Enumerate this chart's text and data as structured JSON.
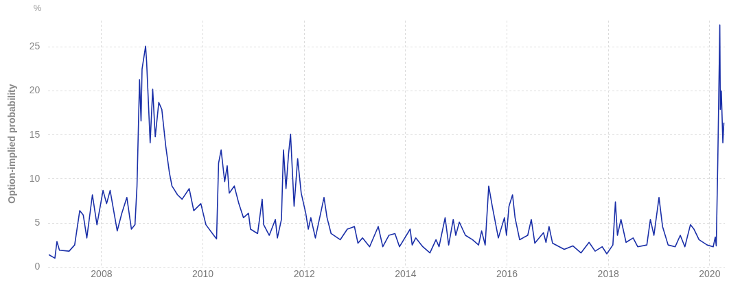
{
  "chart_data": {
    "type": "line",
    "ylabel": "Option-implied probability",
    "annotations": [
      "%"
    ],
    "xlim": [
      2006.95,
      2020.3
    ],
    "xticks": [
      2008,
      2010,
      2012,
      2014,
      2016,
      2018,
      2020
    ],
    "ylim": [
      0,
      28
    ],
    "yticks": [
      0,
      5,
      10,
      15,
      20,
      25
    ],
    "grid": true,
    "legend": false,
    "marker": "none",
    "line_style": "solid",
    "series": [
      {
        "color": "#1a2fa8",
        "x": [
          2006.96,
          2007.08,
          2007.12,
          2007.17,
          2007.36,
          2007.47,
          2007.57,
          2007.64,
          2007.71,
          2007.82,
          2007.91,
          2008.03,
          2008.1,
          2008.17,
          2008.31,
          2008.4,
          2008.5,
          2008.59,
          2008.66,
          2008.7,
          2008.75,
          2008.78,
          2008.8,
          2008.87,
          2008.89,
          2008.96,
          2009.01,
          2009.06,
          2009.13,
          2009.19,
          2009.27,
          2009.34,
          2009.39,
          2009.5,
          2009.59,
          2009.73,
          2009.82,
          2009.96,
          2010.06,
          2010.24,
          2010.27,
          2010.31,
          2010.36,
          2010.43,
          2010.48,
          2010.52,
          2010.62,
          2010.71,
          2010.8,
          2010.9,
          2010.94,
          2011.08,
          2011.17,
          2011.2,
          2011.31,
          2011.43,
          2011.47,
          2011.55,
          2011.59,
          2011.64,
          2011.69,
          2011.73,
          2011.8,
          2011.87,
          2011.94,
          2012.03,
          2012.08,
          2012.13,
          2012.22,
          2012.39,
          2012.45,
          2012.53,
          2012.71,
          2012.85,
          2012.99,
          2013.06,
          2013.15,
          2013.29,
          2013.46,
          2013.55,
          2013.67,
          2013.79,
          2013.88,
          2014.09,
          2014.13,
          2014.2,
          2014.34,
          2014.48,
          2014.6,
          2014.66,
          2014.78,
          2014.85,
          2014.94,
          2014.99,
          2015.06,
          2015.18,
          2015.32,
          2015.44,
          2015.5,
          2015.57,
          2015.64,
          2015.71,
          2015.83,
          2015.95,
          2015.99,
          2016.04,
          2016.11,
          2016.16,
          2016.25,
          2016.41,
          2016.48,
          2016.55,
          2016.72,
          2016.77,
          2016.83,
          2016.9,
          2017.13,
          2017.3,
          2017.46,
          2017.62,
          2017.74,
          2017.88,
          2017.97,
          2018.09,
          2018.14,
          2018.18,
          2018.25,
          2018.35,
          2018.49,
          2018.58,
          2018.76,
          2018.83,
          2018.9,
          2019.0,
          2019.07,
          2019.18,
          2019.32,
          2019.42,
          2019.51,
          2019.62,
          2019.69,
          2019.79,
          2019.95,
          2020.07,
          2020.11,
          2020.13,
          2020.16,
          2020.2,
          2020.21,
          2020.23,
          2020.26,
          2020.28
        ],
        "values": [
          1.4,
          1.0,
          2.9,
          1.9,
          1.8,
          2.5,
          6.4,
          5.9,
          3.3,
          8.2,
          4.8,
          8.7,
          7.2,
          8.7,
          4.1,
          6.1,
          7.9,
          4.3,
          4.8,
          9.2,
          21.3,
          16.6,
          22.5,
          25.1,
          23.3,
          14.1,
          20.2,
          14.8,
          18.7,
          17.9,
          13.6,
          10.7,
          9.2,
          8.2,
          7.7,
          8.9,
          6.4,
          7.2,
          4.8,
          3.4,
          3.2,
          11.8,
          13.3,
          9.7,
          11.5,
          8.4,
          9.2,
          7.2,
          5.6,
          6.1,
          4.3,
          3.8,
          7.7,
          4.8,
          3.6,
          5.4,
          3.3,
          5.4,
          13.3,
          8.9,
          12.8,
          15.1,
          6.9,
          12.3,
          8.4,
          6.1,
          4.3,
          5.6,
          3.3,
          7.9,
          5.6,
          3.8,
          3.1,
          4.3,
          4.6,
          2.7,
          3.3,
          2.3,
          4.6,
          2.3,
          3.6,
          3.8,
          2.3,
          4.3,
          2.5,
          3.3,
          2.3,
          1.6,
          3.1,
          2.3,
          5.6,
          2.5,
          5.4,
          3.6,
          5.1,
          3.6,
          3.1,
          2.5,
          4.1,
          2.5,
          9.2,
          6.9,
          3.3,
          5.6,
          3.6,
          6.9,
          8.2,
          5.6,
          3.1,
          3.6,
          5.4,
          2.7,
          3.9,
          2.8,
          4.6,
          2.7,
          2.0,
          2.4,
          1.6,
          2.8,
          1.8,
          2.3,
          1.5,
          2.5,
          7.4,
          3.6,
          5.4,
          2.8,
          3.3,
          2.3,
          2.5,
          5.4,
          3.6,
          7.9,
          4.6,
          2.5,
          2.3,
          3.6,
          2.3,
          4.8,
          4.3,
          3.1,
          2.5,
          2.3,
          3.4,
          2.4,
          12.0,
          27.5,
          17.9,
          20.0,
          14.1,
          16.4
        ]
      }
    ]
  }
}
